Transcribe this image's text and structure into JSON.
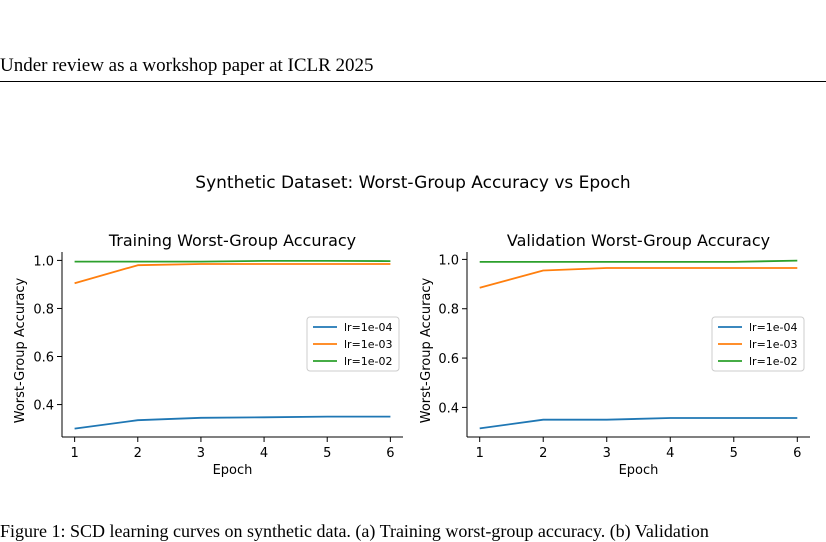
{
  "page": {
    "header": "Under review as a workshop paper at ICLR 2025",
    "suptitle": "Synthetic Dataset: Worst-Group Accuracy vs Epoch",
    "caption": "Figure 1: SCD learning curves on synthetic data. (a) Training worst-group accuracy. (b) Validation"
  },
  "chart_data": [
    {
      "type": "line",
      "title": "Training Worst-Group Accuracy",
      "xlabel": "Epoch",
      "ylabel": "Worst-Group Accuracy",
      "x": [
        1,
        2,
        3,
        4,
        5,
        6
      ],
      "xlim": [
        0.8,
        6.2
      ],
      "ylim": [
        0.265,
        1.035
      ],
      "xticks": [
        "1",
        "2",
        "3",
        "4",
        "5",
        "6"
      ],
      "yticks": [
        "0.4",
        "0.6",
        "0.8",
        "1.0"
      ],
      "grid": false,
      "legend": "center-right",
      "series": [
        {
          "name": "lr=1e-04",
          "color": "#1f77b4",
          "values": [
            0.3,
            0.335,
            0.345,
            0.347,
            0.35,
            0.35
          ]
        },
        {
          "name": "lr=1e-03",
          "color": "#ff7f0e",
          "values": [
            0.905,
            0.98,
            0.985,
            0.985,
            0.985,
            0.985
          ]
        },
        {
          "name": "lr=1e-02",
          "color": "#2ca02c",
          "values": [
            0.995,
            0.995,
            0.995,
            0.998,
            0.998,
            0.997
          ]
        }
      ]
    },
    {
      "type": "line",
      "title": "Validation Worst-Group Accuracy",
      "xlabel": "Epoch",
      "ylabel": "Worst-Group Accuracy",
      "x": [
        1,
        2,
        3,
        4,
        5,
        6
      ],
      "xlim": [
        0.8,
        6.2
      ],
      "ylim": [
        0.28,
        1.03
      ],
      "xticks": [
        "1",
        "2",
        "3",
        "4",
        "5",
        "6"
      ],
      "yticks": [
        "0.4",
        "0.6",
        "0.8",
        "1.0"
      ],
      "grid": false,
      "legend": "center-right",
      "series": [
        {
          "name": "lr=1e-04",
          "color": "#1f77b4",
          "values": [
            0.315,
            0.35,
            0.35,
            0.357,
            0.357,
            0.357
          ]
        },
        {
          "name": "lr=1e-03",
          "color": "#ff7f0e",
          "values": [
            0.885,
            0.955,
            0.965,
            0.965,
            0.965,
            0.965
          ]
        },
        {
          "name": "lr=1e-02",
          "color": "#2ca02c",
          "values": [
            0.99,
            0.99,
            0.99,
            0.99,
            0.99,
            0.995
          ]
        }
      ]
    }
  ]
}
